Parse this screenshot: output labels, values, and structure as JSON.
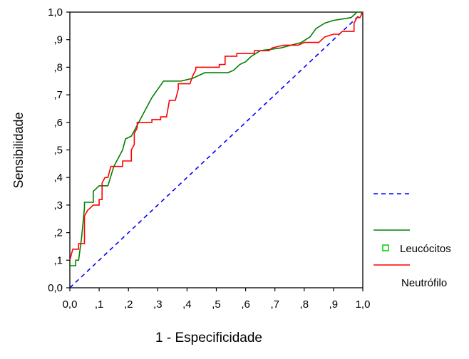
{
  "chart_data": {
    "type": "line",
    "title": "",
    "xlabel": "1 - Especificidade",
    "ylabel": "Sensibilidade",
    "xlim": [
      0,
      1
    ],
    "ylim": [
      0,
      1
    ],
    "x_ticks": [
      "0,0",
      ",1",
      ",2",
      ",3",
      ",4",
      ",5",
      ",6",
      ",7",
      ",8",
      ",9",
      "1,0"
    ],
    "y_ticks": [
      "0,0",
      ",1",
      ",2",
      ",3",
      ",4",
      ",5",
      ",6",
      ",7",
      ",8",
      ",9",
      "1,0"
    ],
    "grid": false,
    "legend_position": "right",
    "legend": [
      {
        "label": "",
        "color": "#0000ff",
        "style": "dashed",
        "marker": false
      },
      {
        "label": "",
        "color": "#008000",
        "style": "solid",
        "marker": false
      },
      {
        "label": "Leucócitos",
        "color": "#00cc00",
        "style": "none",
        "marker": true
      },
      {
        "label": "",
        "color": "#ff0000",
        "style": "solid",
        "marker": false
      },
      {
        "label": "Neutrófilo",
        "color": "",
        "style": "none",
        "marker": false
      }
    ],
    "series": [
      {
        "color": "#0000ff",
        "style": "dashed",
        "points": [
          [
            0,
            0
          ],
          [
            1,
            1
          ]
        ]
      },
      {
        "color": "#008000",
        "style": "solid",
        "points": [
          [
            0,
            0.07
          ],
          [
            0,
            0.08
          ],
          [
            0.02,
            0.08
          ],
          [
            0.02,
            0.1
          ],
          [
            0.03,
            0.1
          ],
          [
            0.04,
            0.18
          ],
          [
            0.05,
            0.29
          ],
          [
            0.05,
            0.31
          ],
          [
            0.08,
            0.31
          ],
          [
            0.08,
            0.35
          ],
          [
            0.1,
            0.37
          ],
          [
            0.13,
            0.37
          ],
          [
            0.15,
            0.44
          ],
          [
            0.17,
            0.48
          ],
          [
            0.18,
            0.5
          ],
          [
            0.19,
            0.54
          ],
          [
            0.21,
            0.55
          ],
          [
            0.23,
            0.59
          ],
          [
            0.26,
            0.65
          ],
          [
            0.28,
            0.69
          ],
          [
            0.3,
            0.72
          ],
          [
            0.32,
            0.75
          ],
          [
            0.38,
            0.75
          ],
          [
            0.42,
            0.76
          ],
          [
            0.46,
            0.78
          ],
          [
            0.54,
            0.78
          ],
          [
            0.56,
            0.79
          ],
          [
            0.58,
            0.81
          ],
          [
            0.6,
            0.82
          ],
          [
            0.62,
            0.84
          ],
          [
            0.65,
            0.86
          ],
          [
            0.72,
            0.87
          ],
          [
            0.79,
            0.89
          ],
          [
            0.82,
            0.91
          ],
          [
            0.84,
            0.94
          ],
          [
            0.87,
            0.96
          ],
          [
            0.9,
            0.97
          ],
          [
            0.96,
            0.98
          ],
          [
            0.98,
            1.0
          ],
          [
            1.0,
            1.0
          ]
        ]
      },
      {
        "color": "#ff0000",
        "style": "step",
        "points": [
          [
            0,
            0.1
          ],
          [
            0.01,
            0.14
          ],
          [
            0.03,
            0.14
          ],
          [
            0.03,
            0.16
          ],
          [
            0.05,
            0.16
          ],
          [
            0.05,
            0.26
          ],
          [
            0.06,
            0.28
          ],
          [
            0.08,
            0.3
          ],
          [
            0.1,
            0.3
          ],
          [
            0.1,
            0.32
          ],
          [
            0.11,
            0.32
          ],
          [
            0.11,
            0.38
          ],
          [
            0.12,
            0.4
          ],
          [
            0.13,
            0.4
          ],
          [
            0.14,
            0.44
          ],
          [
            0.18,
            0.44
          ],
          [
            0.18,
            0.46
          ],
          [
            0.21,
            0.46
          ],
          [
            0.21,
            0.5
          ],
          [
            0.22,
            0.52
          ],
          [
            0.22,
            0.56
          ],
          [
            0.23,
            0.58
          ],
          [
            0.23,
            0.6
          ],
          [
            0.28,
            0.6
          ],
          [
            0.28,
            0.61
          ],
          [
            0.31,
            0.61
          ],
          [
            0.31,
            0.62
          ],
          [
            0.33,
            0.62
          ],
          [
            0.34,
            0.68
          ],
          [
            0.36,
            0.68
          ],
          [
            0.37,
            0.72
          ],
          [
            0.37,
            0.74
          ],
          [
            0.41,
            0.74
          ],
          [
            0.42,
            0.77
          ],
          [
            0.43,
            0.79
          ],
          [
            0.43,
            0.8
          ],
          [
            0.51,
            0.8
          ],
          [
            0.51,
            0.81
          ],
          [
            0.53,
            0.81
          ],
          [
            0.53,
            0.84
          ],
          [
            0.57,
            0.84
          ],
          [
            0.57,
            0.85
          ],
          [
            0.63,
            0.85
          ],
          [
            0.63,
            0.86
          ],
          [
            0.68,
            0.86
          ],
          [
            0.69,
            0.87
          ],
          [
            0.73,
            0.88
          ],
          [
            0.78,
            0.88
          ],
          [
            0.8,
            0.89
          ],
          [
            0.85,
            0.89
          ],
          [
            0.87,
            0.91
          ],
          [
            0.9,
            0.92
          ],
          [
            0.92,
            0.92
          ],
          [
            0.93,
            0.93
          ],
          [
            0.97,
            0.93
          ],
          [
            0.97,
            0.96
          ],
          [
            0.98,
            0.98
          ],
          [
            0.99,
            0.98
          ],
          [
            1.0,
            1.0
          ]
        ]
      }
    ]
  }
}
